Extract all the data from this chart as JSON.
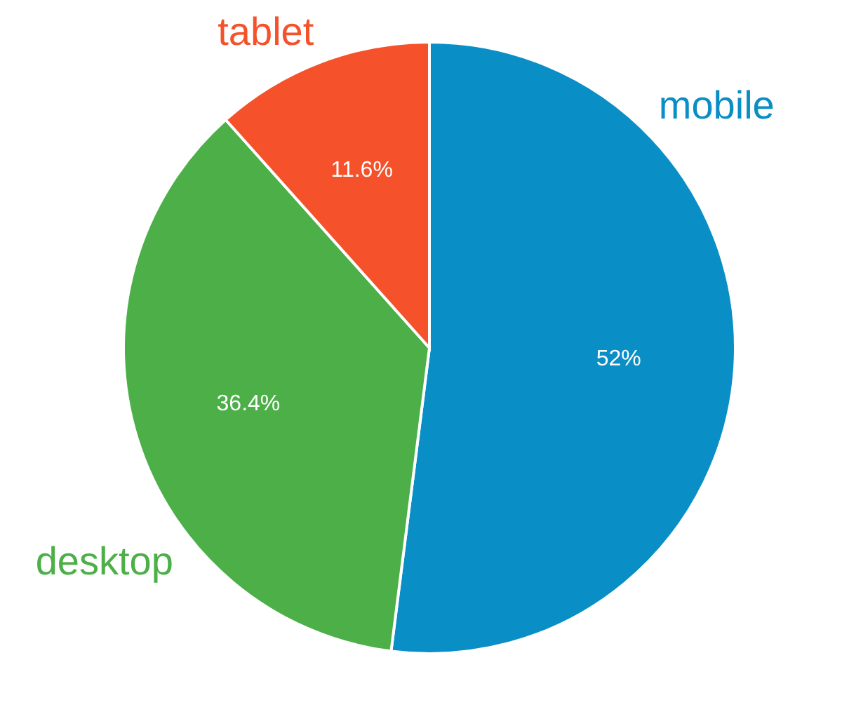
{
  "chart_data": {
    "type": "pie",
    "categories": [
      "mobile",
      "desktop",
      "tablet"
    ],
    "values": [
      52,
      36.4,
      11.6
    ],
    "colors": [
      "#0a8ec6",
      "#4caf48",
      "#f5522b"
    ],
    "value_labels": [
      "52%",
      "36.4%",
      "11.6%"
    ]
  }
}
